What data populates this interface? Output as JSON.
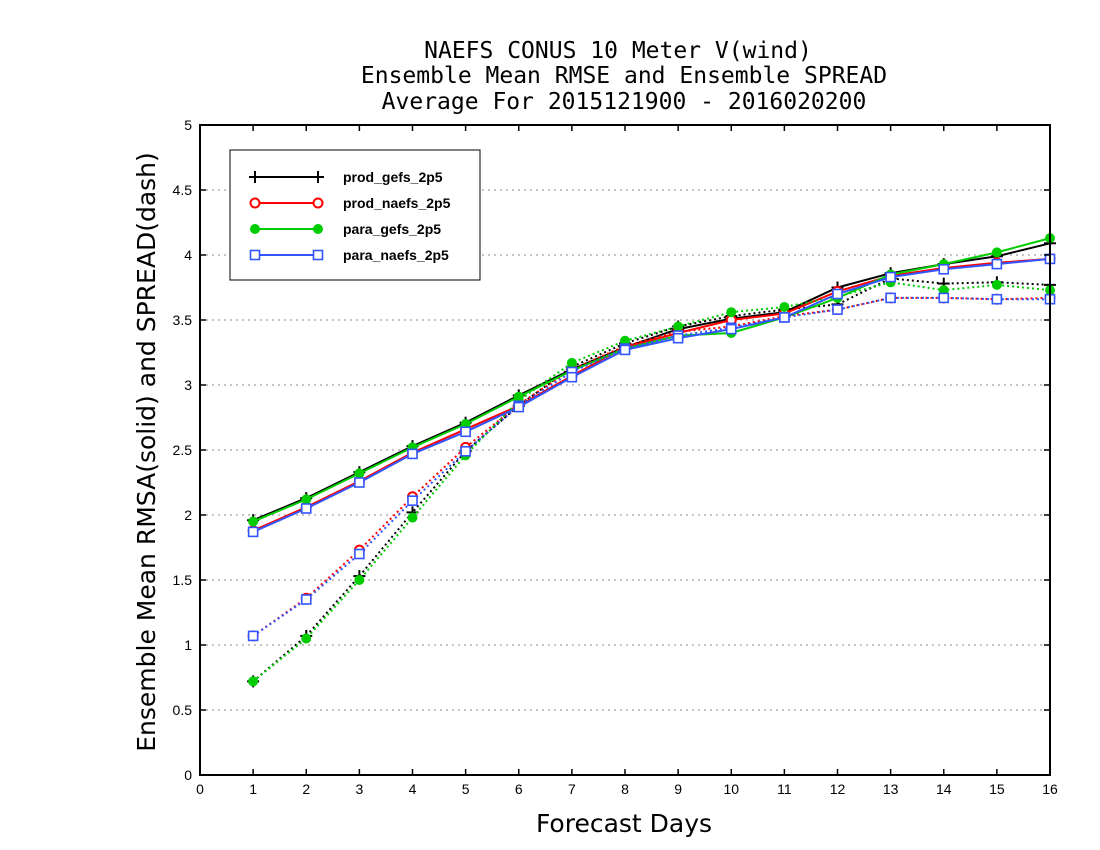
{
  "chart_data": {
    "type": "line",
    "title": [
      "NAEFS CONUS 10 Meter V(wind)",
      "Ensemble Mean RMSE and Ensemble SPREAD",
      "Average For 2015121900 - 2016020200"
    ],
    "xlabel": "Forecast Days",
    "ylabel": "Ensemble Mean RMSA(solid) and SPREAD(dash)",
    "xlim": [
      0,
      16
    ],
    "ylim": [
      0,
      5
    ],
    "xticks": [
      "0",
      "1",
      "2",
      "3",
      "4",
      "5",
      "6",
      "7",
      "8",
      "9",
      "10",
      "11",
      "12",
      "13",
      "14",
      "15",
      "16"
    ],
    "yticks": [
      "0",
      "0.5",
      "1",
      "1.5",
      "2",
      "2.5",
      "3",
      "3.5",
      "4",
      "4.5",
      "5"
    ],
    "grid": "horizontal dotted",
    "legend_position": "top-left",
    "x": [
      1,
      2,
      3,
      4,
      5,
      6,
      7,
      8,
      9,
      10,
      11,
      12,
      13,
      14,
      15,
      16
    ],
    "series": [
      {
        "name": "prod_gefs_2p5",
        "color": "#000000",
        "marker": "plus",
        "rmse": [
          1.96,
          2.13,
          2.33,
          2.53,
          2.71,
          2.92,
          3.12,
          3.29,
          3.43,
          3.51,
          3.56,
          3.75,
          3.86,
          3.93,
          3.99,
          4.09
        ],
        "spread": [
          0.72,
          1.07,
          1.53,
          2.02,
          2.49,
          2.84,
          3.14,
          3.32,
          3.45,
          3.53,
          3.58,
          3.62,
          3.82,
          3.78,
          3.79,
          3.77
        ]
      },
      {
        "name": "prod_naefs_2p5",
        "color": "#ff0000",
        "marker": "circle-open",
        "rmse": [
          1.88,
          2.06,
          2.26,
          2.48,
          2.66,
          2.84,
          3.07,
          3.29,
          3.4,
          3.5,
          3.55,
          3.72,
          3.84,
          3.9,
          3.94,
          3.97
        ],
        "spread": [
          1.07,
          1.36,
          1.73,
          2.14,
          2.52,
          2.85,
          3.12,
          3.3,
          3.41,
          3.45,
          3.53,
          3.58,
          3.67,
          3.67,
          3.66,
          3.67
        ]
      },
      {
        "name": "para_gefs_2p5",
        "color": "#00cc00",
        "marker": "circle-filled",
        "rmse": [
          1.95,
          2.12,
          2.32,
          2.52,
          2.7,
          2.91,
          3.11,
          3.28,
          3.38,
          3.4,
          3.52,
          3.67,
          3.85,
          3.93,
          4.02,
          4.13
        ],
        "spread": [
          0.72,
          1.05,
          1.5,
          1.98,
          2.46,
          2.88,
          3.17,
          3.34,
          3.45,
          3.56,
          3.6,
          3.68,
          3.79,
          3.73,
          3.77,
          3.73
        ]
      },
      {
        "name": "para_naefs_2p5",
        "color": "#3355ff",
        "marker": "square-open",
        "rmse": [
          1.87,
          2.05,
          2.25,
          2.47,
          2.64,
          2.83,
          3.06,
          3.27,
          3.36,
          3.43,
          3.52,
          3.7,
          3.83,
          3.89,
          3.93,
          3.97
        ],
        "spread": [
          1.07,
          1.35,
          1.7,
          2.11,
          2.49,
          2.84,
          3.1,
          3.28,
          3.38,
          3.44,
          3.52,
          3.58,
          3.67,
          3.67,
          3.66,
          3.66
        ]
      }
    ]
  }
}
